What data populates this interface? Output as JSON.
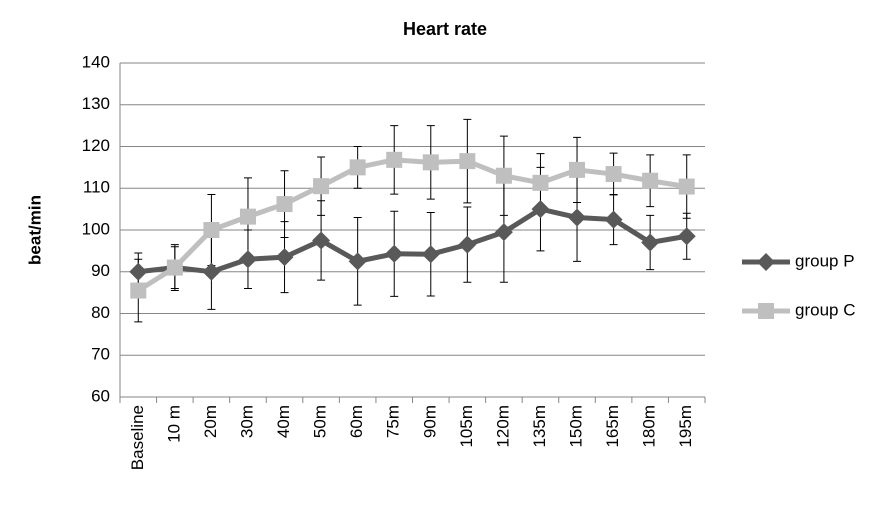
{
  "chart_data": {
    "type": "line",
    "title": "Heart rate",
    "y_label": "beat/min",
    "categories": [
      "Baseline",
      "10 m",
      "20m",
      "30m",
      "40m",
      "50m",
      "60m",
      "75m",
      "90m",
      "105m",
      "120m",
      "135m",
      "150m",
      "165m",
      "180m",
      "195m"
    ],
    "series": [
      {
        "name": "group P",
        "color": "#595959",
        "marker": "diamond",
        "values": [
          90,
          91,
          90,
          93,
          93.5,
          97.5,
          92.5,
          94.3,
          94.2,
          96.5,
          99.5,
          105,
          103,
          102.5,
          97,
          98.5
        ],
        "errors": [
          4.5,
          5.5,
          9,
          7,
          8.5,
          9.5,
          10.5,
          10.2,
          10,
          9,
          12,
          10,
          10.5,
          6,
          6.5,
          5.5
        ]
      },
      {
        "name": "group C",
        "color": "#bfbfbf",
        "marker": "square",
        "values": [
          85.5,
          91,
          100,
          103.2,
          106.2,
          110.5,
          115,
          116.8,
          116.2,
          116.5,
          113,
          111.3,
          114.4,
          113.4,
          111.8,
          110.4
        ],
        "errors": [
          7.5,
          5,
          8.5,
          9.3,
          8,
          7,
          5,
          8.2,
          8.8,
          10,
          9.5,
          7,
          7.8,
          5,
          6.2,
          7.6
        ]
      }
    ],
    "ylim": [
      60,
      140
    ],
    "yticks": [
      60,
      70,
      80,
      90,
      100,
      110,
      120,
      130,
      140
    ],
    "grid": true,
    "legend": "right"
  }
}
